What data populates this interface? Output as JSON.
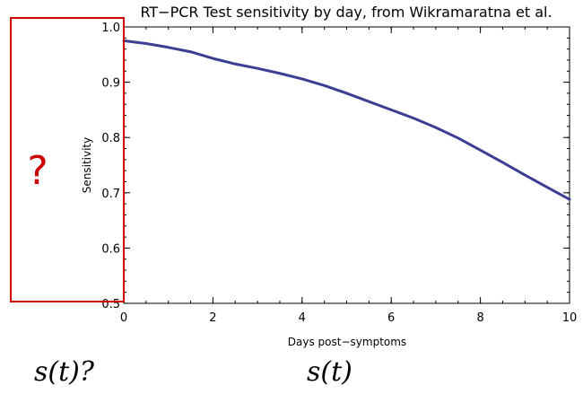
{
  "chart_data": {
    "type": "line",
    "title": "RT−PCR Test sensitivity by day, from Wikramaratna et al.",
    "xlabel": "Days post−symptoms",
    "ylabel": "Sensitivity",
    "xlim": [
      0,
      10
    ],
    "ylim": [
      0.5,
      1.0
    ],
    "x_ticks": [
      "0",
      "2",
      "4",
      "6",
      "8",
      "10"
    ],
    "y_ticks": [
      "0.5",
      "0.6",
      "0.7",
      "0.8",
      "0.9",
      "1.0"
    ],
    "grid": false,
    "series": [
      {
        "color": "#3b3f94",
        "x": [
          0,
          0.5,
          1,
          1.5,
          2,
          2.5,
          3,
          3.5,
          4,
          4.5,
          5,
          5.5,
          6,
          6.5,
          7,
          7.5,
          8,
          8.5,
          9,
          9.5,
          10
        ],
        "y": [
          0.975,
          0.97,
          0.963,
          0.955,
          0.943,
          0.933,
          0.925,
          0.916,
          0.906,
          0.894,
          0.88,
          0.865,
          0.85,
          0.835,
          0.818,
          0.799,
          0.777,
          0.755,
          0.732,
          0.71,
          0.688
        ]
      }
    ]
  },
  "annotations": {
    "question_mark": "?",
    "highlight_color": "#cc0000",
    "left_formula": "s(t)?",
    "right_formula": "s(t)"
  }
}
